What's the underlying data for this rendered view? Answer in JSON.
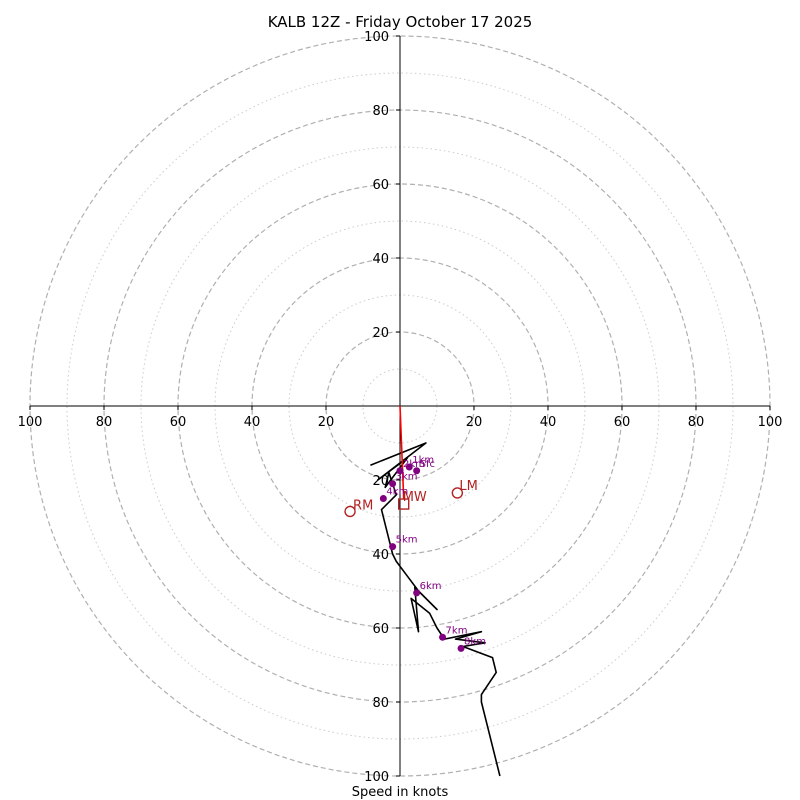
{
  "chart_data": {
    "type": "hodograph",
    "title": "KALB 12Z - Friday October 17 2025",
    "xlabel": "Speed in knots",
    "range_knots": [
      -100,
      100
    ],
    "major_rings": [
      20,
      40,
      60,
      80,
      100
    ],
    "minor_rings": [
      10,
      30,
      50,
      70,
      90
    ],
    "tick_labels": {
      "right": [
        "20",
        "40",
        "60",
        "80",
        "100"
      ],
      "left": [
        "100",
        "80",
        "60",
        "40",
        "20"
      ],
      "top": [
        "100",
        "80",
        "60",
        "40",
        "20"
      ],
      "bottom": [
        "20",
        "40",
        "60",
        "80",
        "100"
      ]
    },
    "hodograph_trace_uv": [
      [
        -8,
        -16
      ],
      [
        7,
        -10
      ],
      [
        -6,
        -20
      ],
      [
        2,
        -14
      ],
      [
        -4,
        -22
      ],
      [
        -3,
        -18
      ],
      [
        -1,
        -24
      ],
      [
        -5,
        -28
      ],
      [
        -4,
        -32
      ],
      [
        -3,
        -36
      ],
      [
        -2,
        -40
      ],
      [
        -1,
        -42
      ],
      [
        2,
        -46
      ],
      [
        5,
        -50
      ],
      [
        10,
        -55
      ],
      [
        4,
        -49
      ],
      [
        5,
        -61
      ],
      [
        3,
        -52
      ],
      [
        8,
        -56
      ],
      [
        10,
        -60
      ],
      [
        12,
        -63
      ],
      [
        22,
        -61
      ],
      [
        15,
        -63
      ],
      [
        23,
        -64
      ],
      [
        17,
        -65
      ],
      [
        25,
        -68
      ],
      [
        26,
        -72
      ],
      [
        22,
        -78
      ],
      [
        22,
        -80
      ],
      [
        24,
        -88
      ],
      [
        27,
        -100
      ]
    ],
    "height_markers": [
      {
        "label": "Sfc",
        "u": 4.5,
        "v": -17.5
      },
      {
        "label": "1km",
        "u": 2.5,
        "v": -16.5
      },
      {
        "label": "2km",
        "u": 0,
        "v": -17.5
      },
      {
        "label": "3km",
        "u": -2,
        "v": -21
      },
      {
        "label": "4km",
        "u": -4.5,
        "v": -25
      },
      {
        "label": "5km",
        "u": -2,
        "v": -38
      },
      {
        "label": "6km",
        "u": 4.5,
        "v": -50.5
      },
      {
        "label": "7km",
        "u": 11.5,
        "v": -62.5
      },
      {
        "label": "8km",
        "u": 16.5,
        "v": -65.5
      }
    ],
    "storm_motion": {
      "line_uv": [
        [
          0,
          0
        ],
        [
          1,
          -25
        ]
      ],
      "RM": {
        "label": "RM",
        "u": -13.5,
        "v": -28.5
      },
      "LM": {
        "label": "LM",
        "u": 15.5,
        "v": -23.5
      },
      "MW": {
        "label": "MW",
        "u": 1,
        "v": -26.5
      }
    },
    "colors": {
      "trace": "#000000",
      "markers": "#800080",
      "storm": "#b22222",
      "rings": "#b0b0b0"
    }
  }
}
